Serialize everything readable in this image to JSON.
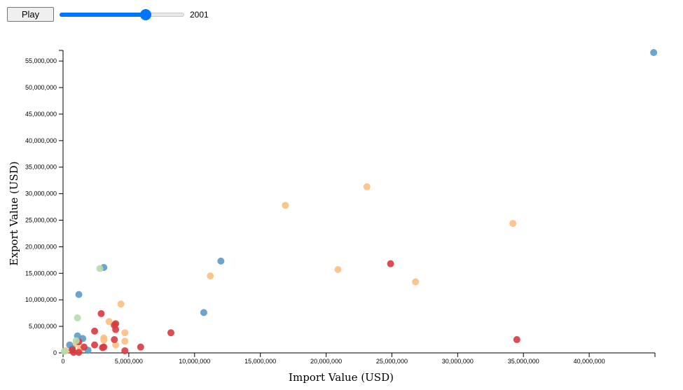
{
  "controls": {
    "play_label": "Play",
    "year": "2001",
    "slider_fraction": 0.69
  },
  "colors": {
    "blue": "#5b9ac7",
    "orange": "#fdbf82",
    "red": "#d73a3f",
    "green": "#b5ddab"
  },
  "chart_data": {
    "type": "scatter",
    "xlabel": "Import Value (USD)",
    "ylabel": "Export Value (USD)",
    "xlim": [
      0,
      45000000
    ],
    "ylim": [
      0,
      57000000
    ],
    "xticks": [
      0,
      5000000,
      10000000,
      15000000,
      20000000,
      25000000,
      30000000,
      35000000,
      40000000
    ],
    "xtick_labels": [
      "0",
      "5,000,000",
      "10,000,000",
      "15,000,000",
      "20,000,000",
      "25,000,000",
      "30,000,000",
      "35,000,000",
      "40,000,000"
    ],
    "yticks": [
      0,
      5000000,
      10000000,
      15000000,
      20000000,
      25000000,
      30000000,
      35000000,
      40000000,
      45000000,
      50000000,
      55000000
    ],
    "ytick_labels": [
      "0",
      "5,000,000",
      "10,000,000",
      "15,000,000",
      "20,000,000",
      "25,000,000",
      "30,000,000",
      "35,000,000",
      "40,000,000",
      "45,000,000",
      "50,000,000",
      "55,000,000"
    ],
    "points": [
      {
        "x": 44900000,
        "y": 56600000,
        "c": "blue"
      },
      {
        "x": 3100000,
        "y": 16100000,
        "c": "blue"
      },
      {
        "x": 12000000,
        "y": 17300000,
        "c": "blue"
      },
      {
        "x": 1200000,
        "y": 11000000,
        "c": "blue"
      },
      {
        "x": 10700000,
        "y": 7600000,
        "c": "blue"
      },
      {
        "x": 1100000,
        "y": 3200000,
        "c": "blue"
      },
      {
        "x": 1500000,
        "y": 2700000,
        "c": "blue"
      },
      {
        "x": 500000,
        "y": 1500000,
        "c": "blue"
      },
      {
        "x": 1900000,
        "y": 500000,
        "c": "blue"
      },
      {
        "x": 700000,
        "y": 900000,
        "c": "blue"
      },
      {
        "x": 23100000,
        "y": 31300000,
        "c": "orange"
      },
      {
        "x": 16900000,
        "y": 27800000,
        "c": "orange"
      },
      {
        "x": 34200000,
        "y": 24400000,
        "c": "orange"
      },
      {
        "x": 20900000,
        "y": 15700000,
        "c": "orange"
      },
      {
        "x": 26800000,
        "y": 13400000,
        "c": "orange"
      },
      {
        "x": 11200000,
        "y": 14500000,
        "c": "orange"
      },
      {
        "x": 4400000,
        "y": 9200000,
        "c": "orange"
      },
      {
        "x": 3500000,
        "y": 5900000,
        "c": "orange"
      },
      {
        "x": 4700000,
        "y": 3800000,
        "c": "orange"
      },
      {
        "x": 3100000,
        "y": 2800000,
        "c": "orange"
      },
      {
        "x": 3100000,
        "y": 2400000,
        "c": "orange"
      },
      {
        "x": 4700000,
        "y": 2200000,
        "c": "orange"
      },
      {
        "x": 4000000,
        "y": 1500000,
        "c": "orange"
      },
      {
        "x": 1000000,
        "y": 1800000,
        "c": "orange"
      },
      {
        "x": 1300000,
        "y": 700000,
        "c": "orange"
      },
      {
        "x": 200000,
        "y": 400000,
        "c": "orange"
      },
      {
        "x": 24900000,
        "y": 16800000,
        "c": "red"
      },
      {
        "x": 34500000,
        "y": 2500000,
        "c": "red"
      },
      {
        "x": 2900000,
        "y": 7400000,
        "c": "red"
      },
      {
        "x": 4000000,
        "y": 5500000,
        "c": "red"
      },
      {
        "x": 3900000,
        "y": 5200000,
        "c": "red"
      },
      {
        "x": 4000000,
        "y": 4400000,
        "c": "red"
      },
      {
        "x": 2400000,
        "y": 4100000,
        "c": "red"
      },
      {
        "x": 8200000,
        "y": 3800000,
        "c": "red"
      },
      {
        "x": 3900000,
        "y": 2500000,
        "c": "red"
      },
      {
        "x": 1200000,
        "y": 2100000,
        "c": "red"
      },
      {
        "x": 2400000,
        "y": 1500000,
        "c": "red"
      },
      {
        "x": 1600000,
        "y": 1100000,
        "c": "red"
      },
      {
        "x": 3100000,
        "y": 1100000,
        "c": "red"
      },
      {
        "x": 3000000,
        "y": 1000000,
        "c": "red"
      },
      {
        "x": 5900000,
        "y": 1100000,
        "c": "red"
      },
      {
        "x": 4700000,
        "y": 400000,
        "c": "red"
      },
      {
        "x": 700000,
        "y": 600000,
        "c": "red"
      },
      {
        "x": 800000,
        "y": 100000,
        "c": "red"
      },
      {
        "x": 1200000,
        "y": 100000,
        "c": "red"
      },
      {
        "x": 2800000,
        "y": 15900000,
        "c": "green"
      },
      {
        "x": 1100000,
        "y": 6600000,
        "c": "green"
      },
      {
        "x": 1000000,
        "y": 2300000,
        "c": "green"
      },
      {
        "x": 100000,
        "y": 300000,
        "c": "green"
      }
    ]
  }
}
